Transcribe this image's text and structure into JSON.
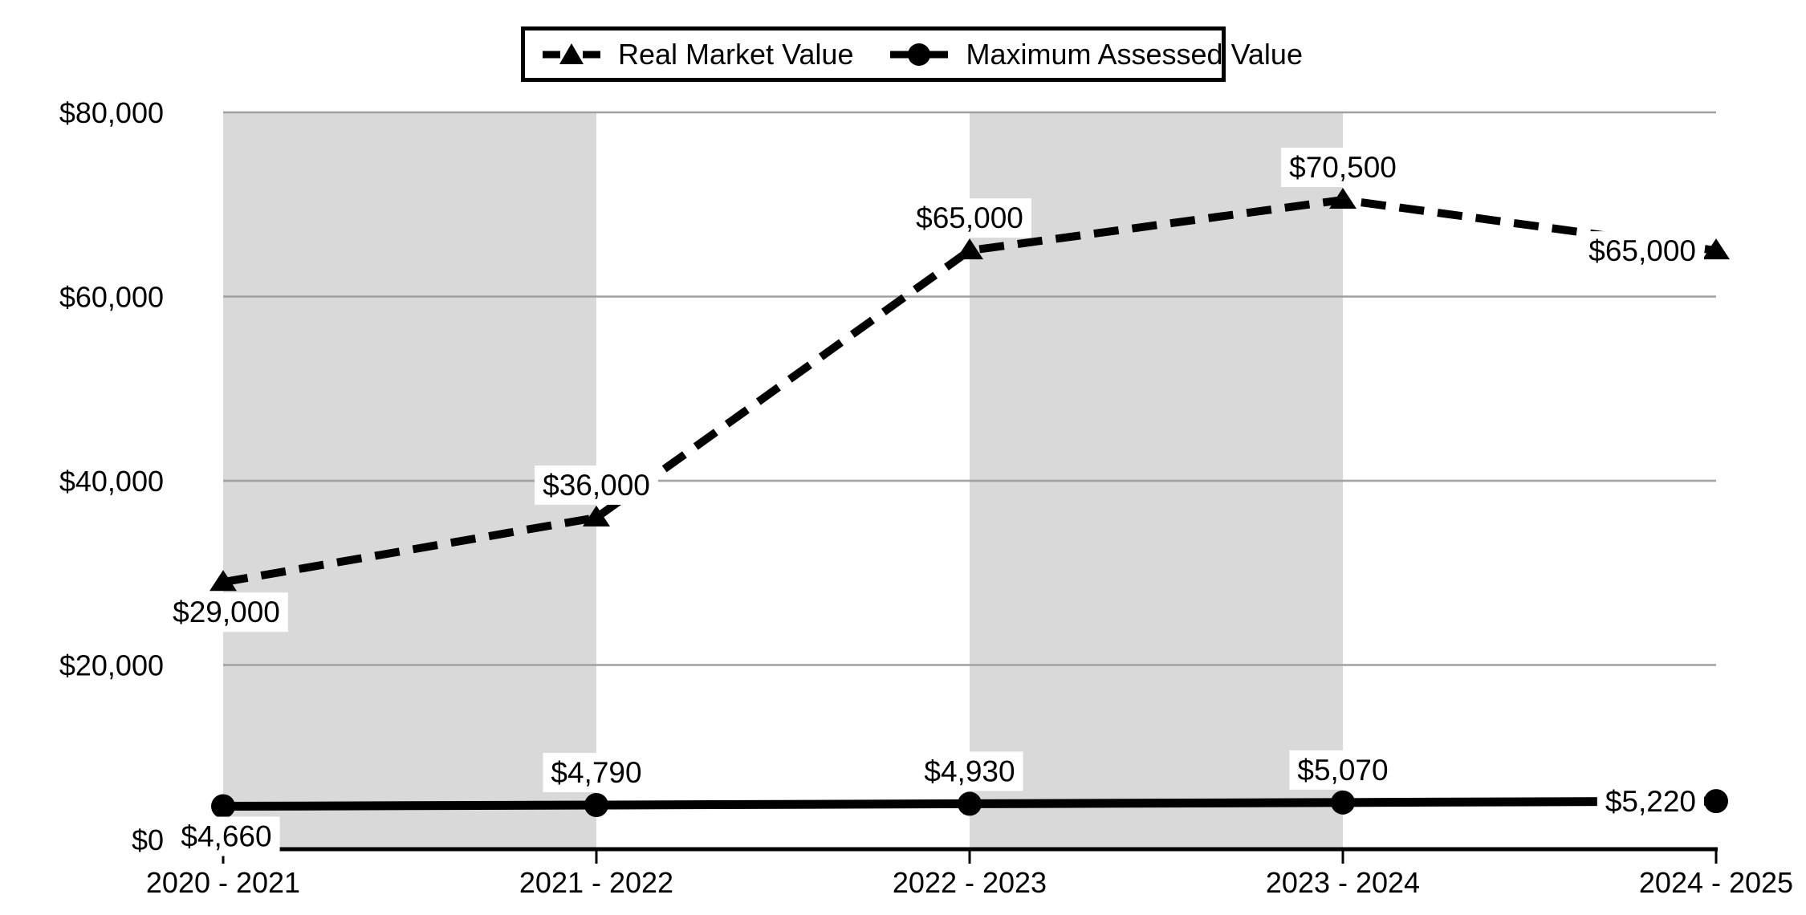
{
  "chart_data": {
    "type": "line",
    "categories": [
      "2020 - 2021",
      "2021 - 2022",
      "2022 - 2023",
      "2023 - 2024",
      "2024 - 2025"
    ],
    "series": [
      {
        "id": "rmv",
        "name": "Real Market Value",
        "values": [
          29000,
          36000,
          65000,
          70500,
          65000
        ],
        "point_labels": [
          "$29,000",
          "$36,000",
          "$65,000",
          "$70,500",
          "$65,000"
        ],
        "label_placement": [
          "below",
          "above",
          "above",
          "above",
          "left"
        ],
        "line_style": "dashed",
        "marker": "triangle",
        "color": "#000000"
      },
      {
        "id": "mav",
        "name": "Maximum Assessed Value",
        "values": [
          4660,
          4790,
          4930,
          5070,
          5220
        ],
        "point_labels": [
          "$4,660",
          "$4,790",
          "$4,930",
          "$5,070",
          "$5,220"
        ],
        "label_placement": [
          "below",
          "above",
          "above",
          "above",
          "left"
        ],
        "line_style": "solid",
        "marker": "circle",
        "color": "#000000"
      }
    ],
    "y_axis": {
      "ylim": [
        0,
        80000
      ],
      "tick_values": [
        0,
        20000,
        40000,
        60000,
        80000
      ],
      "tick_labels": [
        "$0",
        "$20,000",
        "$40,000",
        "$60,000",
        "$80,000"
      ]
    },
    "grid": true,
    "legend_position": "top-center",
    "shaded_intervals": [
      [
        0,
        1
      ],
      [
        2,
        3
      ]
    ],
    "colors": {
      "background": "#ffffff",
      "band": "#d9d9d9",
      "gridline": "#a0a0a0",
      "axis": "#000000",
      "text": "#000000",
      "label_bg": "#ffffff"
    }
  }
}
